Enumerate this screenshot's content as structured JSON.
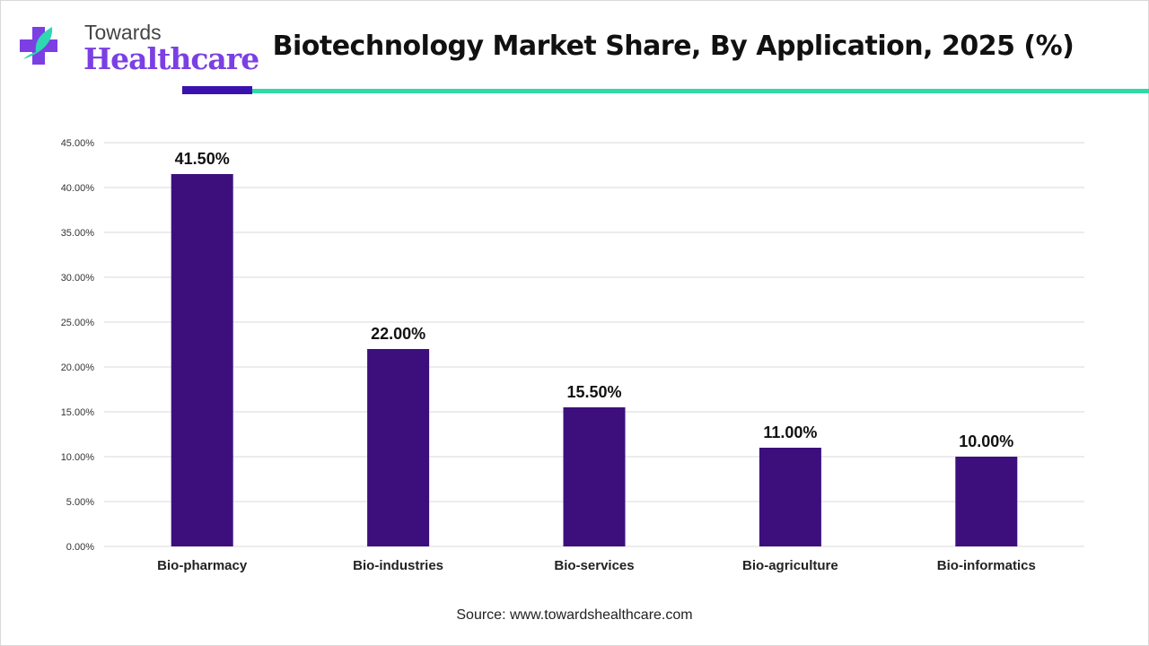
{
  "brand": {
    "line1": "Towards",
    "line2": "Healthcare",
    "purple": "#7b3fe4",
    "teal": "#2ed8b0"
  },
  "accent_colors": {
    "dark": "#3a12b0",
    "teal": "#2fd9a8"
  },
  "source": "Source: www.towardshealthcare.com",
  "chart_data": {
    "type": "bar",
    "title": "Biotechnology Market Share, By Application, 2025 (%)",
    "categories": [
      "Bio-pharmacy",
      "Bio-industries",
      "Bio-services",
      "Bio-agriculture",
      "Bio-informatics"
    ],
    "values": [
      41.5,
      22.0,
      15.5,
      11.0,
      10.0
    ],
    "data_labels": [
      "41.50%",
      "22.00%",
      "15.50%",
      "11.00%",
      "10.00%"
    ],
    "ylim": [
      0,
      45
    ],
    "yticks": [
      "0.00%",
      "5.00%",
      "10.00%",
      "15.00%",
      "20.00%",
      "25.00%",
      "30.00%",
      "35.00%",
      "40.00%",
      "45.00%"
    ],
    "xlabel": "",
    "ylabel": "",
    "grid": true,
    "bar_color": "#3d0f7d"
  }
}
